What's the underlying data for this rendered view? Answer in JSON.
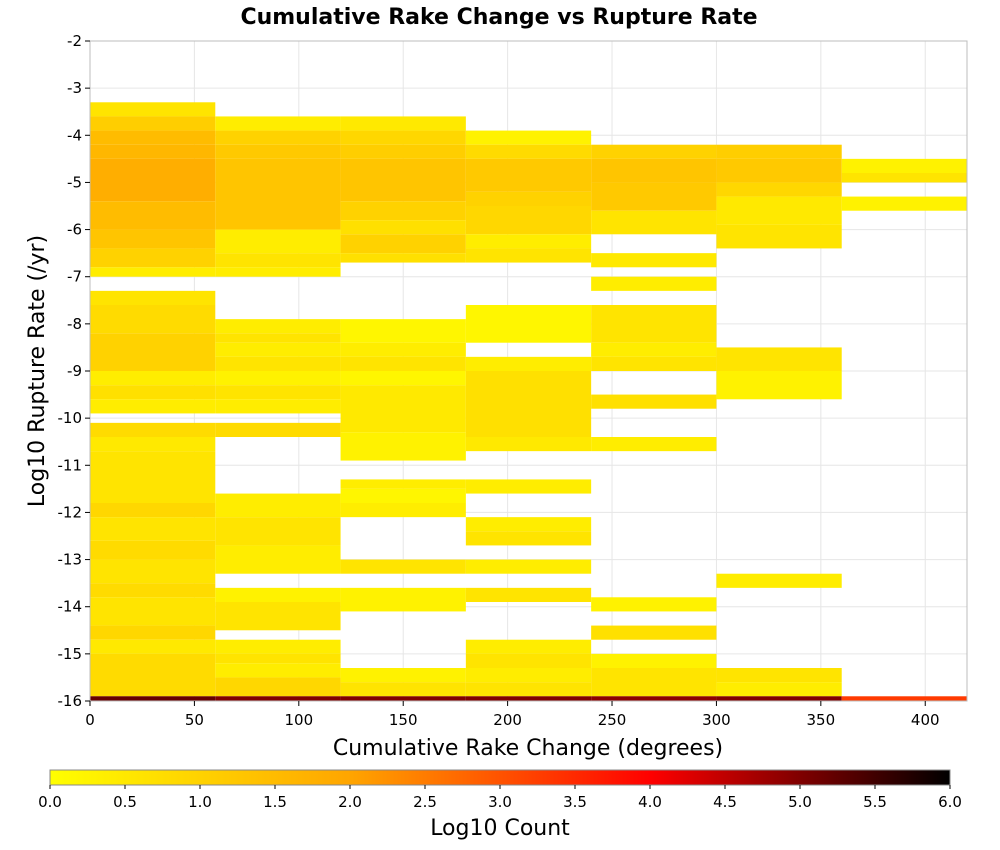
{
  "chart_data": {
    "type": "heatmap",
    "title": "Cumulative Rake Change vs Rupture Rate",
    "xlabel": "Cumulative Rake Change (degrees)",
    "ylabel": "Log10 Rupture Rate (/yr)",
    "xlim": [
      0,
      420
    ],
    "ylim": [
      -16,
      -2
    ],
    "xticks": [
      0,
      50,
      100,
      150,
      200,
      250,
      300,
      350,
      400
    ],
    "yticks": [
      -2,
      -3,
      -4,
      -5,
      -6,
      -7,
      -8,
      -9,
      -10,
      -11,
      -12,
      -13,
      -14,
      -15,
      -16
    ],
    "grid": true,
    "x_bin_width": 60,
    "y_bin_width": 0.28,
    "colorbar": {
      "label": "Log10 Count",
      "range": [
        0,
        6
      ],
      "ticks": [
        0.0,
        0.5,
        1.0,
        1.5,
        2.0,
        2.5,
        3.0,
        3.5,
        4.0,
        4.5,
        5.0,
        5.5,
        6.0
      ],
      "tick_labels": [
        "0.0",
        "0.5",
        "1.0",
        "1.5",
        "2.0",
        "2.5",
        "3.0",
        "3.5",
        "4.0",
        "4.5",
        "5.0",
        "5.5",
        "6.0"
      ],
      "colors": [
        "#ffff00",
        "#ffa500",
        "#ff0000",
        "#000000"
      ]
    },
    "columns": [
      {
        "x_range": [
          0,
          60
        ],
        "cells": [
          {
            "y": [
              -3.6,
              -3.3
            ],
            "v": 0.6
          },
          {
            "y": [
              -3.9,
              -3.6
            ],
            "v": 1.1
          },
          {
            "y": [
              -4.2,
              -3.9
            ],
            "v": 1.5
          },
          {
            "y": [
              -4.5,
              -4.2
            ],
            "v": 1.6
          },
          {
            "y": [
              -5.4,
              -4.5
            ],
            "v": 1.8
          },
          {
            "y": [
              -6.0,
              -5.4
            ],
            "v": 1.5
          },
          {
            "y": [
              -6.4,
              -6.0
            ],
            "v": 1.3
          },
          {
            "y": [
              -6.8,
              -6.4
            ],
            "v": 1.0
          },
          {
            "y": [
              -7.0,
              -6.8
            ],
            "v": 0.4
          },
          {
            "y": [
              -7.6,
              -7.3
            ],
            "v": 0.6
          },
          {
            "y": [
              -8.2,
              -7.6
            ],
            "v": 0.8
          },
          {
            "y": [
              -9.0,
              -8.2
            ],
            "v": 1.0
          },
          {
            "y": [
              -9.3,
              -9.0
            ],
            "v": 0.4
          },
          {
            "y": [
              -9.6,
              -9.3
            ],
            "v": 0.7
          },
          {
            "y": [
              -9.9,
              -9.6
            ],
            "v": 0.4
          },
          {
            "y": [
              -10.4,
              -10.1
            ],
            "v": 0.8
          },
          {
            "y": [
              -10.7,
              -10.4
            ],
            "v": 0.5
          },
          {
            "y": [
              -11.8,
              -10.7
            ],
            "v": 0.6
          },
          {
            "y": [
              -12.1,
              -11.8
            ],
            "v": 0.9
          },
          {
            "y": [
              -12.6,
              -12.1
            ],
            "v": 0.6
          },
          {
            "y": [
              -13.0,
              -12.6
            ],
            "v": 0.8
          },
          {
            "y": [
              -13.5,
              -13.0
            ],
            "v": 0.6
          },
          {
            "y": [
              -13.8,
              -13.5
            ],
            "v": 0.8
          },
          {
            "y": [
              -14.4,
              -13.8
            ],
            "v": 0.6
          },
          {
            "y": [
              -14.7,
              -14.4
            ],
            "v": 0.9
          },
          {
            "y": [
              -15.0,
              -14.7
            ],
            "v": 0.5
          },
          {
            "y": [
              -15.9,
              -15.0
            ],
            "v": 0.8
          },
          {
            "y": [
              -16.0,
              -15.9
            ],
            "v": 5.2
          }
        ]
      },
      {
        "x_range": [
          60,
          120
        ],
        "cells": [
          {
            "y": [
              -3.9,
              -3.6
            ],
            "v": 0.4
          },
          {
            "y": [
              -4.2,
              -3.9
            ],
            "v": 1.0
          },
          {
            "y": [
              -4.5,
              -4.2
            ],
            "v": 1.2
          },
          {
            "y": [
              -6.0,
              -4.5
            ],
            "v": 1.3
          },
          {
            "y": [
              -6.5,
              -6.0
            ],
            "v": 0.4
          },
          {
            "y": [
              -6.8,
              -6.5
            ],
            "v": 0.6
          },
          {
            "y": [
              -7.0,
              -6.8
            ],
            "v": 0.4
          },
          {
            "y": [
              -8.2,
              -7.9
            ],
            "v": 0.4
          },
          {
            "y": [
              -8.4,
              -8.2
            ],
            "v": 0.6
          },
          {
            "y": [
              -8.7,
              -8.4
            ],
            "v": 0.4
          },
          {
            "y": [
              -9.0,
              -8.7
            ],
            "v": 0.6
          },
          {
            "y": [
              -9.3,
              -9.0
            ],
            "v": 0.3
          },
          {
            "y": [
              -9.6,
              -9.3
            ],
            "v": 0.6
          },
          {
            "y": [
              -9.9,
              -9.6
            ],
            "v": 0.4
          },
          {
            "y": [
              -10.4,
              -10.1
            ],
            "v": 0.8
          },
          {
            "y": [
              -12.1,
              -11.6
            ],
            "v": 0.4
          },
          {
            "y": [
              -12.7,
              -12.1
            ],
            "v": 0.6
          },
          {
            "y": [
              -13.3,
              -12.7
            ],
            "v": 0.4
          },
          {
            "y": [
              -13.9,
              -13.6
            ],
            "v": 0.3
          },
          {
            "y": [
              -14.5,
              -13.9
            ],
            "v": 0.6
          },
          {
            "y": [
              -15.0,
              -14.7
            ],
            "v": 0.4
          },
          {
            "y": [
              -15.2,
              -15.0
            ],
            "v": 0.6
          },
          {
            "y": [
              -15.5,
              -15.2
            ],
            "v": 0.4
          },
          {
            "y": [
              -15.9,
              -15.5
            ],
            "v": 0.9
          },
          {
            "y": [
              -16.0,
              -15.9
            ],
            "v": 5.0
          }
        ]
      },
      {
        "x_range": [
          120,
          180
        ],
        "cells": [
          {
            "y": [
              -3.9,
              -3.6
            ],
            "v": 0.5
          },
          {
            "y": [
              -4.2,
              -3.9
            ],
            "v": 0.9
          },
          {
            "y": [
              -4.5,
              -4.2
            ],
            "v": 1.1
          },
          {
            "y": [
              -5.4,
              -4.5
            ],
            "v": 1.3
          },
          {
            "y": [
              -5.8,
              -5.4
            ],
            "v": 1.0
          },
          {
            "y": [
              -6.1,
              -5.8
            ],
            "v": 0.7
          },
          {
            "y": [
              -6.5,
              -6.1
            ],
            "v": 1.0
          },
          {
            "y": [
              -6.7,
              -6.5
            ],
            "v": 0.7
          },
          {
            "y": [
              -8.4,
              -7.9
            ],
            "v": 0.2
          },
          {
            "y": [
              -8.7,
              -8.4
            ],
            "v": 0.4
          },
          {
            "y": [
              -9.0,
              -8.7
            ],
            "v": 0.6
          },
          {
            "y": [
              -9.3,
              -9.0
            ],
            "v": 0.2
          },
          {
            "y": [
              -10.3,
              -9.3
            ],
            "v": 0.5
          },
          {
            "y": [
              -10.9,
              -10.3
            ],
            "v": 0.3
          },
          {
            "y": [
              -11.5,
              -11.3
            ],
            "v": 0.4
          },
          {
            "y": [
              -11.8,
              -11.5
            ],
            "v": 0.2
          },
          {
            "y": [
              -12.1,
              -11.8
            ],
            "v": 0.4
          },
          {
            "y": [
              -13.3,
              -13.0
            ],
            "v": 0.6
          },
          {
            "y": [
              -14.1,
              -13.6
            ],
            "v": 0.3
          },
          {
            "y": [
              -15.6,
              -15.3
            ],
            "v": 0.3
          },
          {
            "y": [
              -15.9,
              -15.6
            ],
            "v": 0.6
          },
          {
            "y": [
              -16.0,
              -15.9
            ],
            "v": 5.0
          }
        ]
      },
      {
        "x_range": [
          180,
          240
        ],
        "cells": [
          {
            "y": [
              -4.2,
              -3.9
            ],
            "v": 0.3
          },
          {
            "y": [
              -4.5,
              -4.2
            ],
            "v": 0.8
          },
          {
            "y": [
              -5.2,
              -4.5
            ],
            "v": 1.2
          },
          {
            "y": [
              -5.5,
              -5.2
            ],
            "v": 1.0
          },
          {
            "y": [
              -6.1,
              -5.5
            ],
            "v": 0.9
          },
          {
            "y": [
              -6.4,
              -6.1
            ],
            "v": 0.4
          },
          {
            "y": [
              -6.7,
              -6.4
            ],
            "v": 0.6
          },
          {
            "y": [
              -8.4,
              -7.6
            ],
            "v": 0.2
          },
          {
            "y": [
              -9.0,
              -8.7
            ],
            "v": 0.4
          },
          {
            "y": [
              -10.4,
              -9.0
            ],
            "v": 0.7
          },
          {
            "y": [
              -10.7,
              -10.4
            ],
            "v": 0.5
          },
          {
            "y": [
              -11.6,
              -11.3
            ],
            "v": 0.4
          },
          {
            "y": [
              -12.4,
              -12.1
            ],
            "v": 0.4
          },
          {
            "y": [
              -12.7,
              -12.4
            ],
            "v": 0.6
          },
          {
            "y": [
              -13.3,
              -13.0
            ],
            "v": 0.4
          },
          {
            "y": [
              -13.9,
              -13.6
            ],
            "v": 0.6
          },
          {
            "y": [
              -15.0,
              -14.7
            ],
            "v": 0.4
          },
          {
            "y": [
              -15.3,
              -15.0
            ],
            "v": 0.6
          },
          {
            "y": [
              -15.6,
              -15.3
            ],
            "v": 0.4
          },
          {
            "y": [
              -15.9,
              -15.6
            ],
            "v": 0.6
          },
          {
            "y": [
              -16.0,
              -15.9
            ],
            "v": 5.0
          }
        ]
      },
      {
        "x_range": [
          240,
          300
        ],
        "cells": [
          {
            "y": [
              -4.5,
              -4.2
            ],
            "v": 1.0
          },
          {
            "y": [
              -5.0,
              -4.5
            ],
            "v": 1.3
          },
          {
            "y": [
              -5.6,
              -5.0
            ],
            "v": 1.2
          },
          {
            "y": [
              -6.1,
              -5.6
            ],
            "v": 0.6
          },
          {
            "y": [
              -6.8,
              -6.5
            ],
            "v": 0.5
          },
          {
            "y": [
              -7.3,
              -7.0
            ],
            "v": 0.4
          },
          {
            "y": [
              -8.4,
              -7.6
            ],
            "v": 0.6
          },
          {
            "y": [
              -8.7,
              -8.4
            ],
            "v": 0.4
          },
          {
            "y": [
              -9.0,
              -8.7
            ],
            "v": 0.6
          },
          {
            "y": [
              -9.8,
              -9.5
            ],
            "v": 0.7
          },
          {
            "y": [
              -10.7,
              -10.4
            ],
            "v": 0.4
          },
          {
            "y": [
              -14.1,
              -13.8
            ],
            "v": 0.3
          },
          {
            "y": [
              -14.7,
              -14.4
            ],
            "v": 0.7
          },
          {
            "y": [
              -15.3,
              -15.0
            ],
            "v": 0.3
          },
          {
            "y": [
              -15.9,
              -15.3
            ],
            "v": 0.6
          },
          {
            "y": [
              -16.0,
              -15.9
            ],
            "v": 4.9
          }
        ]
      },
      {
        "x_range": [
          300,
          360
        ],
        "cells": [
          {
            "y": [
              -4.5,
              -4.2
            ],
            "v": 1.1
          },
          {
            "y": [
              -5.0,
              -4.5
            ],
            "v": 1.2
          },
          {
            "y": [
              -5.3,
              -5.0
            ],
            "v": 0.9
          },
          {
            "y": [
              -5.9,
              -5.3
            ],
            "v": 0.5
          },
          {
            "y": [
              -6.4,
              -5.9
            ],
            "v": 0.6
          },
          {
            "y": [
              -9.0,
              -8.5
            ],
            "v": 0.6
          },
          {
            "y": [
              -9.6,
              -9.0
            ],
            "v": 0.3
          },
          {
            "y": [
              -13.6,
              -13.3
            ],
            "v": 0.4
          },
          {
            "y": [
              -15.6,
              -15.3
            ],
            "v": 0.6
          },
          {
            "y": [
              -15.9,
              -15.6
            ],
            "v": 0.4
          },
          {
            "y": [
              -16.0,
              -15.9
            ],
            "v": 5.0
          }
        ]
      },
      {
        "x_range": [
          360,
          420
        ],
        "cells": [
          {
            "y": [
              -4.8,
              -4.5
            ],
            "v": 0.3
          },
          {
            "y": [
              -5.0,
              -4.8
            ],
            "v": 0.6
          },
          {
            "y": [
              -5.6,
              -5.3
            ],
            "v": 0.3
          },
          {
            "y": [
              -16.0,
              -15.9
            ],
            "v": 3.3
          }
        ]
      }
    ]
  }
}
